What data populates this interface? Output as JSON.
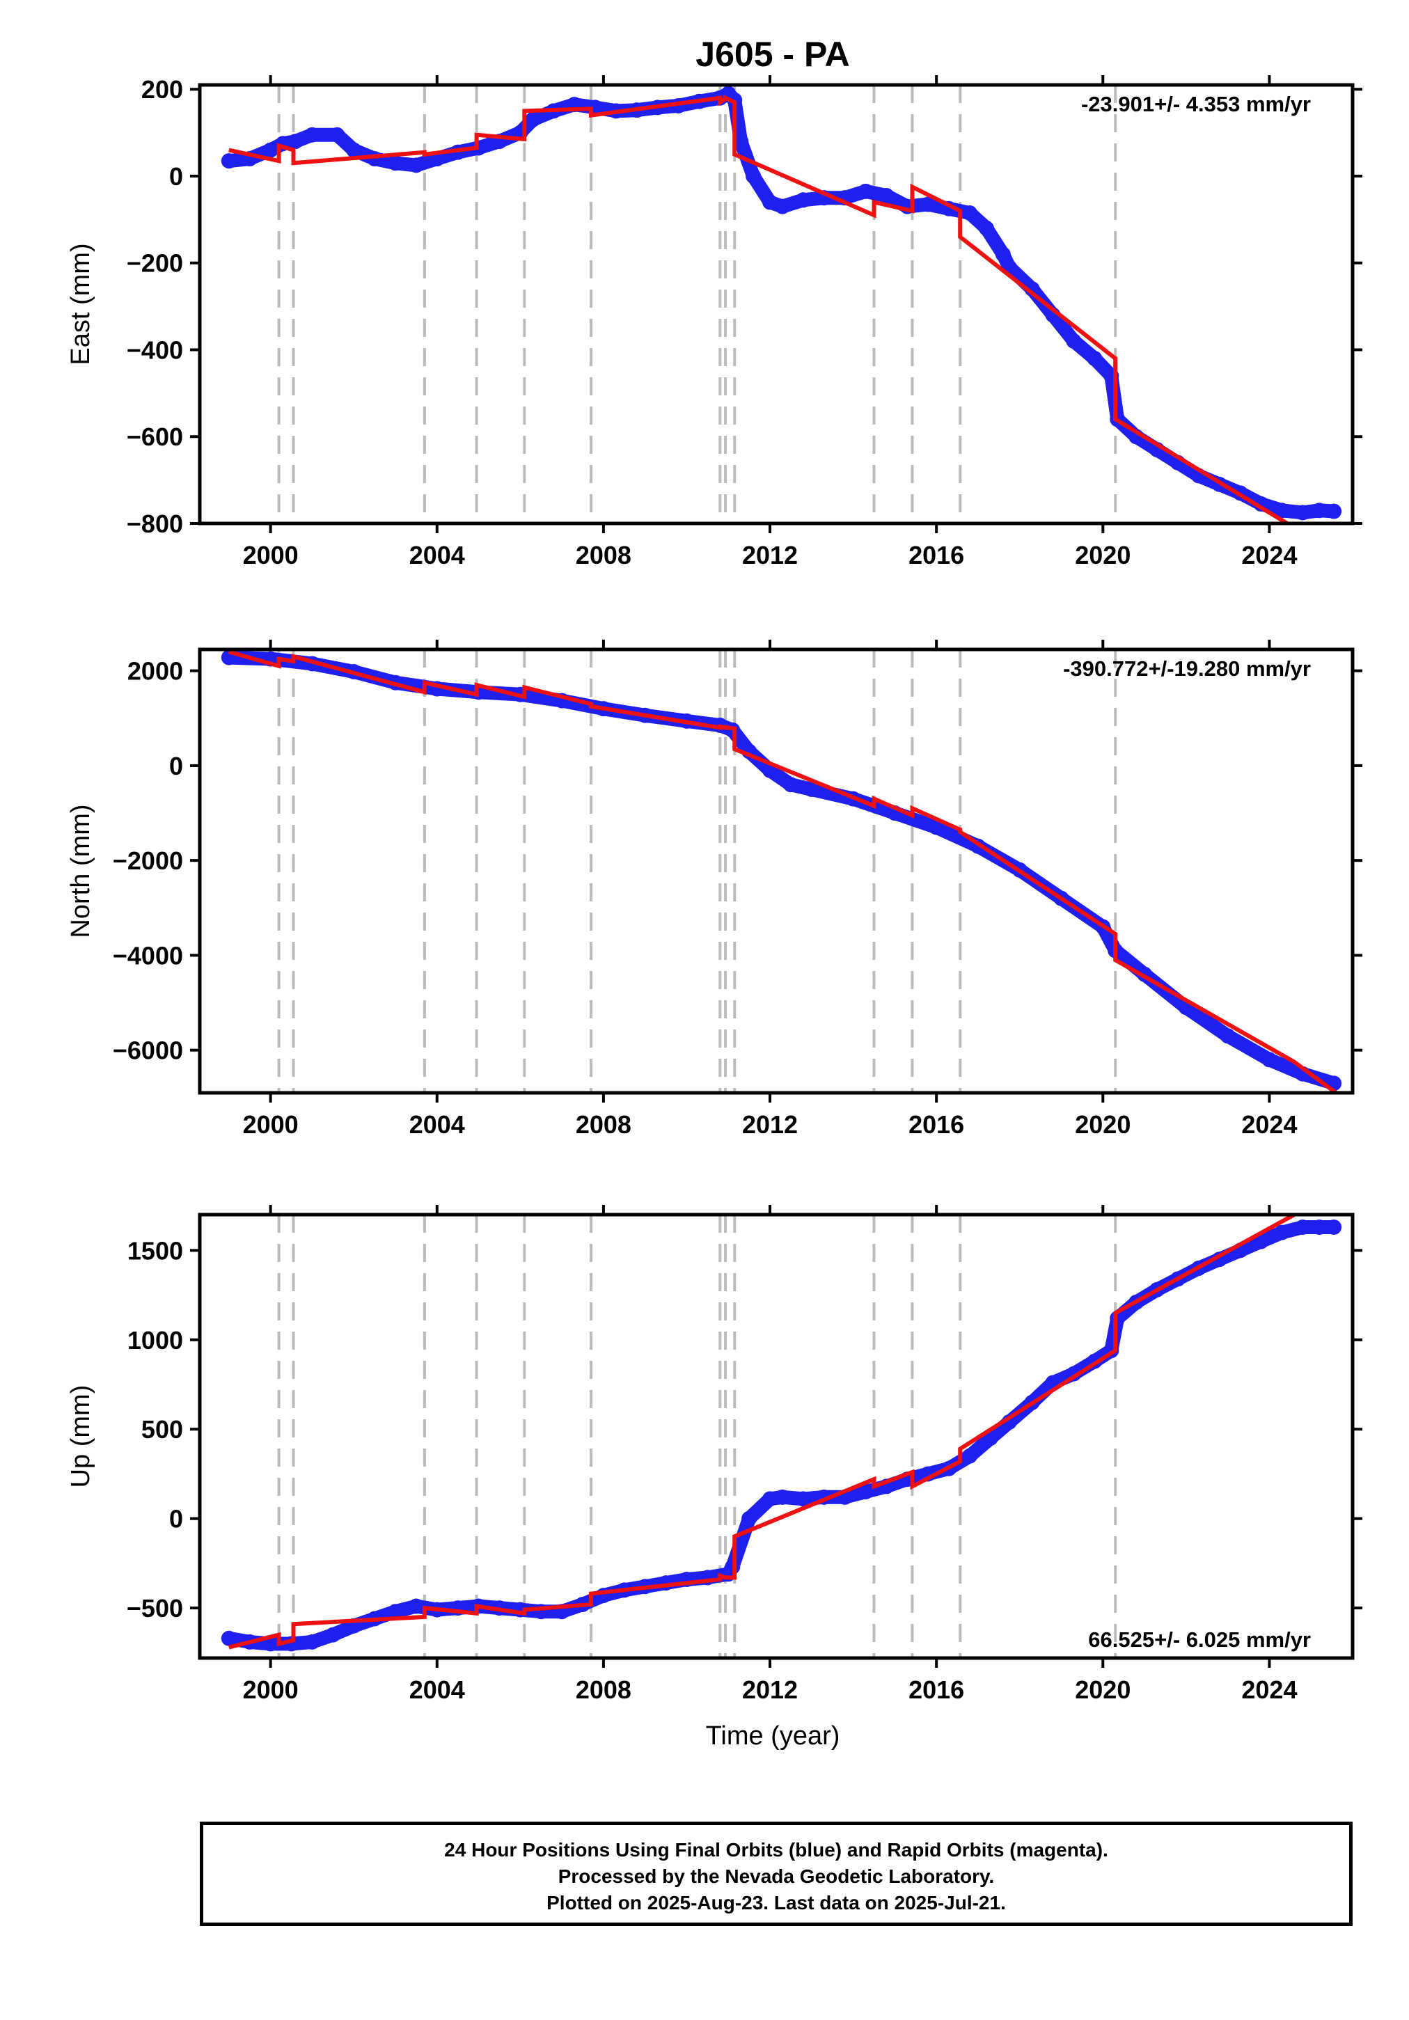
{
  "title": "J605 - PA",
  "xlabel": "Time (year)",
  "footer": {
    "line1": "24 Hour Positions Using Final Orbits (blue) and Rapid Orbits (magenta).",
    "line2": "Processed by the Nevada Geodetic Laboratory.",
    "line3": "Plotted on 2025-Aug-23. Last data on 2025-Jul-21."
  },
  "colors": {
    "observed": "#1f1ff0",
    "model": "#ee1111",
    "events": "#bbbbbb",
    "frame": "#000000"
  },
  "chart_data": {
    "type": "scatter",
    "xlim": [
      1998.3,
      2026.0
    ],
    "x_ticks": [
      2000,
      2004,
      2008,
      2012,
      2016,
      2020,
      2024
    ],
    "event_lines": [
      2000.2,
      2000.55,
      2003.7,
      2004.95,
      2006.1,
      2007.7,
      2010.8,
      2010.93,
      2011.15,
      2014.5,
      2015.42,
      2016.57,
      2020.3
    ],
    "panels": [
      {
        "id": "east",
        "ylabel": "East (mm)",
        "ylim": [
          -800,
          210
        ],
        "y_ticks": [
          200,
          0,
          -200,
          -400,
          -600,
          -800
        ],
        "rate_label": "-23.901+/- 4.353 mm/yr",
        "rate_position": "top-right",
        "series": [
          {
            "role": "observed",
            "x": [
              1999.0,
              1999.5,
              2000.0,
              2000.3,
              2000.6,
              2001.0,
              2001.6,
              2002.0,
              2002.5,
              2003.0,
              2003.5,
              2004.0,
              2004.5,
              2005.0,
              2005.5,
              2006.0,
              2006.3,
              2006.8,
              2007.3,
              2007.8,
              2008.3,
              2008.8,
              2009.3,
              2009.8,
              2010.3,
              2010.8,
              2011.0,
              2011.15,
              2011.3,
              2011.6,
              2012.0,
              2012.3,
              2012.8,
              2013.3,
              2013.8,
              2014.3,
              2014.8,
              2015.3,
              2015.8,
              2016.3,
              2016.8,
              2017.2,
              2017.6,
              2017.75,
              2018.3,
              2018.8,
              2019.3,
              2019.8,
              2020.2,
              2020.35,
              2020.8,
              2021.3,
              2021.8,
              2022.3,
              2022.8,
              2023.3,
              2023.8,
              2024.3,
              2024.8,
              2025.2,
              2025.55
            ],
            "y": [
              35,
              40,
              60,
              75,
              80,
              95,
              95,
              60,
              40,
              30,
              25,
              40,
              55,
              65,
              80,
              100,
              130,
              150,
              165,
              158,
              150,
              152,
              158,
              162,
              172,
              180,
              190,
              175,
              80,
              0,
              -60,
              -70,
              -55,
              -50,
              -50,
              -35,
              -45,
              -70,
              -65,
              -75,
              -85,
              -120,
              -180,
              -210,
              -260,
              -320,
              -380,
              -420,
              -460,
              -560,
              -600,
              -630,
              -660,
              -690,
              -710,
              -730,
              -755,
              -770,
              -775,
              -770,
              -772
            ]
          },
          {
            "role": "model",
            "x": [
              1999.0,
              2000.2,
              2000.2,
              2000.55,
              2000.55,
              2003.7,
              2003.7,
              2004.95,
              2004.95,
              2006.1,
              2006.1,
              2007.7,
              2007.7,
              2010.8,
              2010.8,
              2010.93,
              2010.93,
              2011.15,
              2011.15,
              2014.5,
              2014.5,
              2015.42,
              2015.42,
              2016.57,
              2016.57,
              2020.3,
              2020.3,
              2024.6
            ],
            "y": [
              60,
              35,
              70,
              60,
              30,
              55,
              50,
              65,
              95,
              85,
              150,
              155,
              140,
              180,
              170,
              178,
              180,
              170,
              50,
              -90,
              -60,
              -80,
              -25,
              -80,
              -140,
              -420,
              -560,
              -810
            ]
          }
        ]
      },
      {
        "id": "north",
        "ylabel": "North (mm)",
        "ylim": [
          -6900,
          2450
        ],
        "y_ticks": [
          2000,
          0,
          -2000,
          -4000,
          -6000
        ],
        "rate_label": "-390.772+/-19.280 mm/yr",
        "rate_position": "top-right",
        "series": [
          {
            "role": "observed",
            "x": [
              1999.0,
              2000.0,
              2001.0,
              2002.0,
              2003.0,
              2004.0,
              2005.0,
              2006.0,
              2007.0,
              2008.0,
              2009.0,
              2010.0,
              2010.8,
              2011.1,
              2011.5,
              2012.0,
              2012.5,
              2013.0,
              2014.0,
              2015.0,
              2016.0,
              2017.0,
              2018.0,
              2019.0,
              2020.0,
              2020.3,
              2021.0,
              2022.0,
              2023.0,
              2024.0,
              2024.8,
              2025.55
            ],
            "y": [
              2280,
              2250,
              2150,
              1980,
              1750,
              1620,
              1550,
              1500,
              1370,
              1200,
              1060,
              940,
              850,
              750,
              300,
              -100,
              -400,
              -500,
              -700,
              -1000,
              -1300,
              -1700,
              -2200,
              -2800,
              -3400,
              -3900,
              -4400,
              -5100,
              -5700,
              -6200,
              -6500,
              -6700
            ]
          },
          {
            "role": "model",
            "x": [
              1999.0,
              2000.2,
              2000.2,
              2000.55,
              2000.55,
              2003.7,
              2003.7,
              2004.95,
              2004.95,
              2006.1,
              2006.1,
              2007.7,
              2007.7,
              2010.8,
              2010.8,
              2010.93,
              2010.93,
              2011.15,
              2011.15,
              2014.5,
              2014.5,
              2015.42,
              2015.42,
              2016.57,
              2016.57,
              2020.3,
              2020.3,
              2024.6,
              2025.6
            ],
            "y": [
              2400,
              2100,
              2250,
              2200,
              2300,
              1550,
              1750,
              1500,
              1700,
              1450,
              1650,
              1300,
              1250,
              800,
              820,
              800,
              810,
              780,
              350,
              -850,
              -700,
              -1050,
              -900,
              -1350,
              -1400,
              -3550,
              -4100,
              -6250,
              -6900
            ]
          }
        ]
      },
      {
        "id": "up",
        "ylabel": "Up (mm)",
        "ylim": [
          -780,
          1700
        ],
        "y_ticks": [
          1500,
          1000,
          500,
          0,
          -500
        ],
        "rate_label": "66.525+/- 6.025 mm/yr",
        "rate_position": "bottom-right",
        "series": [
          {
            "role": "observed",
            "x": [
              1999.0,
              1999.5,
              2000.0,
              2000.5,
              2001.0,
              2001.5,
              2002.0,
              2002.5,
              2003.0,
              2003.5,
              2004.0,
              2004.5,
              2005.0,
              2005.5,
              2006.0,
              2006.5,
              2007.0,
              2007.5,
              2008.0,
              2008.5,
              2009.0,
              2009.5,
              2010.0,
              2010.5,
              2011.0,
              2011.1,
              2011.5,
              2012.0,
              2012.3,
              2012.8,
              2013.3,
              2013.8,
              2014.3,
              2014.8,
              2015.3,
              2015.8,
              2016.3,
              2016.8,
              2017.3,
              2017.75,
              2018.3,
              2018.8,
              2019.3,
              2019.8,
              2020.2,
              2020.35,
              2020.8,
              2021.3,
              2021.8,
              2022.3,
              2022.8,
              2023.3,
              2023.8,
              2024.3,
              2024.8,
              2025.2,
              2025.55
            ],
            "y": [
              -670,
              -690,
              -700,
              -700,
              -690,
              -650,
              -600,
              -560,
              -520,
              -490,
              -510,
              -500,
              -490,
              -500,
              -510,
              -520,
              -520,
              -480,
              -430,
              -400,
              -380,
              -360,
              -340,
              -330,
              -310,
              -270,
              0,
              110,
              120,
              110,
              120,
              120,
              150,
              180,
              220,
              250,
              280,
              350,
              450,
              540,
              650,
              760,
              810,
              880,
              940,
              1120,
              1210,
              1280,
              1340,
              1400,
              1450,
              1500,
              1550,
              1600,
              1630,
              1630,
              1630
            ]
          },
          {
            "role": "model",
            "x": [
              1999.0,
              2000.2,
              2000.2,
              2000.55,
              2000.55,
              2003.7,
              2003.7,
              2004.95,
              2004.95,
              2006.1,
              2006.1,
              2007.7,
              2007.7,
              2010.8,
              2010.8,
              2010.93,
              2010.93,
              2011.15,
              2011.15,
              2014.5,
              2014.5,
              2015.42,
              2015.42,
              2016.57,
              2016.57,
              2020.3,
              2020.3,
              2024.6
            ],
            "y": [
              -720,
              -650,
              -700,
              -680,
              -590,
              -550,
              -500,
              -530,
              -490,
              -530,
              -510,
              -480,
              -420,
              -340,
              -320,
              -330,
              -330,
              -330,
              -100,
              220,
              180,
              260,
              180,
              320,
              390,
              940,
              1150,
              1700
            ]
          }
        ]
      }
    ]
  }
}
